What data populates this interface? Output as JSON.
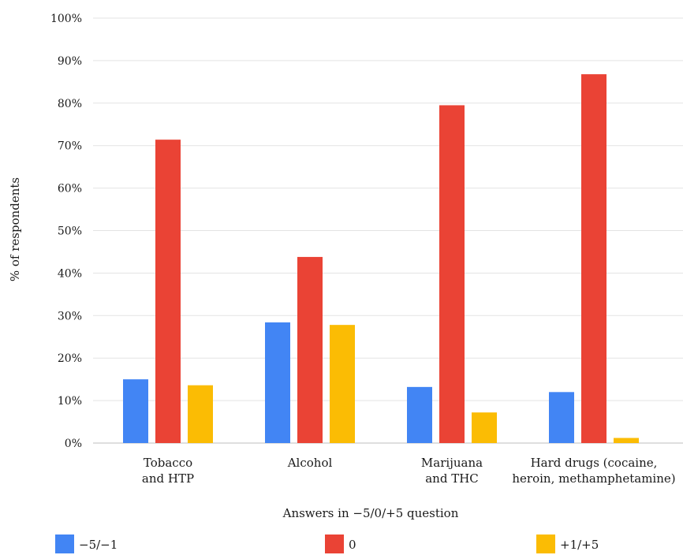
{
  "chart_data": {
    "type": "bar",
    "title": "",
    "ylabel": "% of respondents",
    "xlabel": "Answers in −5/0/+5 question",
    "ylim": [
      0,
      100
    ],
    "yticks": [
      "0%",
      "10%",
      "20%",
      "30%",
      "40%",
      "50%",
      "60%",
      "70%",
      "80%",
      "90%",
      "100%"
    ],
    "grid": true,
    "legend_position": "bottom",
    "categories": [
      [
        "Tobacco",
        "and HTP"
      ],
      [
        "Alcohol"
      ],
      [
        "Marijuana",
        "and THC"
      ],
      [
        "Hard drugs (cocaine,",
        "heroin, methamphetamine)"
      ]
    ],
    "series": [
      {
        "name": "−5/−1",
        "color": "#4285F4",
        "values": [
          15.0,
          28.4,
          13.2,
          12.0
        ]
      },
      {
        "name": "0",
        "color": "#EA4335",
        "values": [
          71.4,
          43.8,
          79.5,
          86.8
        ]
      },
      {
        "name": "+1/+5",
        "color": "#FBBC04",
        "values": [
          13.6,
          27.8,
          7.2,
          1.2
        ]
      }
    ]
  }
}
